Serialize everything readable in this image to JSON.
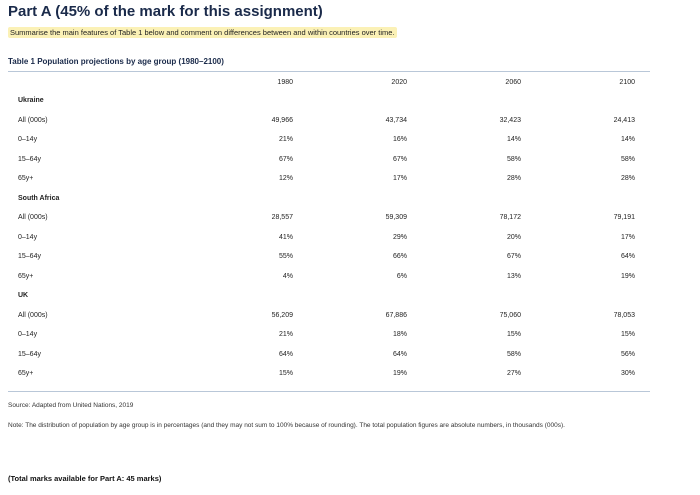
{
  "title": "Part A (45% of the mark for this assignment)",
  "instruction": "Summarise the main features of Table 1 below and comment on differences between and within countries over time.",
  "table_caption": "Table 1 Population projections by age group (1980–2100)",
  "years": [
    "1980",
    "2020",
    "2060",
    "2100"
  ],
  "groups": [
    {
      "country": "Ukraine",
      "rows": [
        {
          "label": "All (000s)",
          "values": [
            "49,966",
            "43,734",
            "32,423",
            "24,413"
          ]
        },
        {
          "label": "0–14y",
          "values": [
            "21%",
            "16%",
            "14%",
            "14%"
          ]
        },
        {
          "label": "15–64y",
          "values": [
            "67%",
            "67%",
            "58%",
            "58%"
          ]
        },
        {
          "label": "65y+",
          "values": [
            "12%",
            "17%",
            "28%",
            "28%"
          ]
        }
      ]
    },
    {
      "country": "South Africa",
      "rows": [
        {
          "label": "All (000s)",
          "values": [
            "28,557",
            "59,309",
            "78,172",
            "79,191"
          ]
        },
        {
          "label": "0–14y",
          "values": [
            "41%",
            "29%",
            "20%",
            "17%"
          ]
        },
        {
          "label": "15–64y",
          "values": [
            "55%",
            "66%",
            "67%",
            "64%"
          ]
        },
        {
          "label": "65y+",
          "values": [
            "4%",
            "6%",
            "13%",
            "19%"
          ]
        }
      ]
    },
    {
      "country": "UK",
      "rows": [
        {
          "label": "All (000s)",
          "values": [
            "56,209",
            "67,886",
            "75,060",
            "78,053"
          ]
        },
        {
          "label": "0–14y",
          "values": [
            "21%",
            "18%",
            "15%",
            "15%"
          ]
        },
        {
          "label": "15–64y",
          "values": [
            "64%",
            "64%",
            "58%",
            "56%"
          ]
        },
        {
          "label": "65y+",
          "values": [
            "15%",
            "19%",
            "27%",
            "30%"
          ]
        }
      ]
    }
  ],
  "source": "Source: Adapted from United Nations, 2019",
  "note": "Note: The distribution of population by age group is in percentages (and they may not sum to 100% because of rounding). The total population figures are absolute numbers, in thousands (000s).",
  "marks": "(Total marks available for Part A: 45 marks)"
}
